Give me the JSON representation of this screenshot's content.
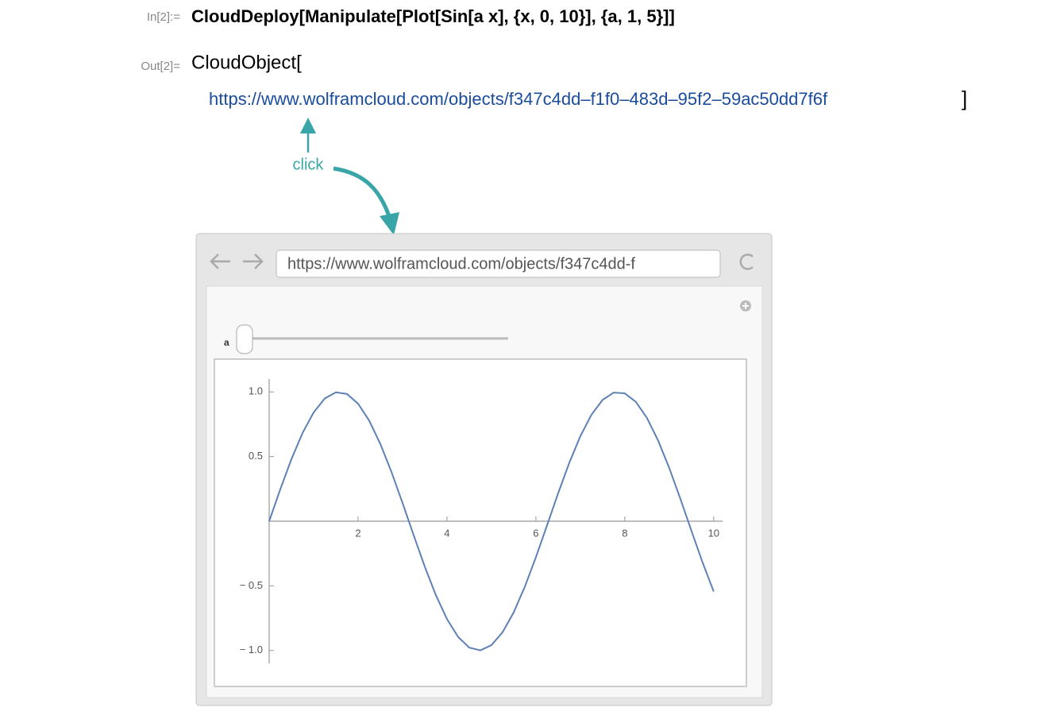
{
  "notebook": {
    "input_label": "In[2]:=",
    "input_code": "CloudDeploy[Manipulate[Plot[Sin[a x], {x, 0, 10}], {a, 1, 5}]]",
    "output_label": "Out[2]=",
    "output_head": "CloudObject[",
    "output_url": "https://www.wolframcloud.com/objects/f347c4dd–f1f0–483d–95f2–59ac50dd7f6f",
    "output_close": "]",
    "annotation": "click"
  },
  "browser": {
    "address": "https://www.wolframcloud.com/objects/f347c4dd-f",
    "slider_label": "a"
  },
  "plot": {
    "type": "line",
    "color": "#5e81b5",
    "xlim": [
      0,
      10.2
    ],
    "ylim": [
      -1.1,
      1.1
    ],
    "xticks": [
      2,
      4,
      6,
      8,
      10
    ],
    "yticks": [
      {
        "value": 1,
        "label": "1.0"
      },
      0.5,
      {
        "value": -0.5,
        "label": "− 0.5"
      },
      {
        "value": -1,
        "label": "− 1.0"
      }
    ],
    "x": [
      0,
      0.25,
      0.5,
      0.75,
      1,
      1.25,
      1.5,
      1.75,
      2,
      2.25,
      2.5,
      2.75,
      3,
      3.25,
      3.5,
      3.75,
      4,
      4.25,
      4.5,
      4.75,
      5,
      5.25,
      5.5,
      5.75,
      6,
      6.25,
      6.5,
      6.75,
      7,
      7.25,
      7.5,
      7.75,
      8,
      8.25,
      8.5,
      8.75,
      9,
      9.25,
      9.5,
      9.75,
      10
    ],
    "values": [
      0,
      0.247,
      0.479,
      0.682,
      0.841,
      0.949,
      0.997,
      0.984,
      0.909,
      0.778,
      0.598,
      0.382,
      0.141,
      -0.108,
      -0.351,
      -0.572,
      -0.757,
      -0.895,
      -0.978,
      -0.999,
      -0.959,
      -0.859,
      -0.706,
      -0.508,
      -0.279,
      -0.033,
      0.215,
      0.45,
      0.657,
      0.823,
      0.938,
      0.995,
      0.989,
      0.923,
      0.798,
      0.624,
      0.412,
      0.174,
      -0.075,
      -0.319,
      -0.544
    ]
  }
}
